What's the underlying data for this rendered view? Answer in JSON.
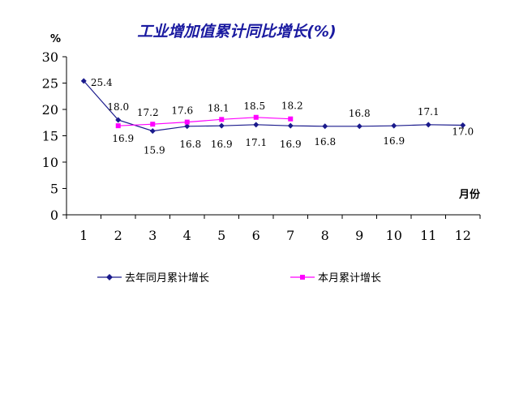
{
  "chart_data": {
    "type": "line",
    "title": "工业增加值累计同比增长(%)",
    "yunit": "%",
    "xunit": "月份",
    "categories": [
      "1",
      "2",
      "3",
      "4",
      "5",
      "6",
      "7",
      "8",
      "9",
      "10",
      "11",
      "12"
    ],
    "ylim": [
      0,
      30
    ],
    "yticks": [
      "0",
      "5",
      "10",
      "15",
      "20",
      "25",
      "30"
    ],
    "series": [
      {
        "name": "去年同月累计增长",
        "color": "#1a1a8c",
        "marker": "diamond",
        "values": [
          25.4,
          18.0,
          15.9,
          16.8,
          16.9,
          17.1,
          16.9,
          16.8,
          16.8,
          16.9,
          17.1,
          17.0
        ],
        "labels": [
          "25.4",
          "18.0",
          "15.9",
          "16.8",
          "16.9",
          "17.1",
          "16.9",
          "16.8",
          "16.8",
          "16.9",
          "17.1",
          "17.0"
        ]
      },
      {
        "name": "本月累计增长",
        "color": "#ff00ff",
        "marker": "square",
        "values": [
          null,
          16.9,
          17.2,
          17.6,
          18.1,
          18.5,
          18.2,
          null,
          null,
          null,
          null,
          null
        ],
        "labels": [
          null,
          "16.9",
          "17.2",
          "17.6",
          "18.1",
          "18.5",
          "18.2",
          null,
          null,
          null,
          null,
          null
        ]
      }
    ],
    "grid": false,
    "legend": "bottom"
  }
}
